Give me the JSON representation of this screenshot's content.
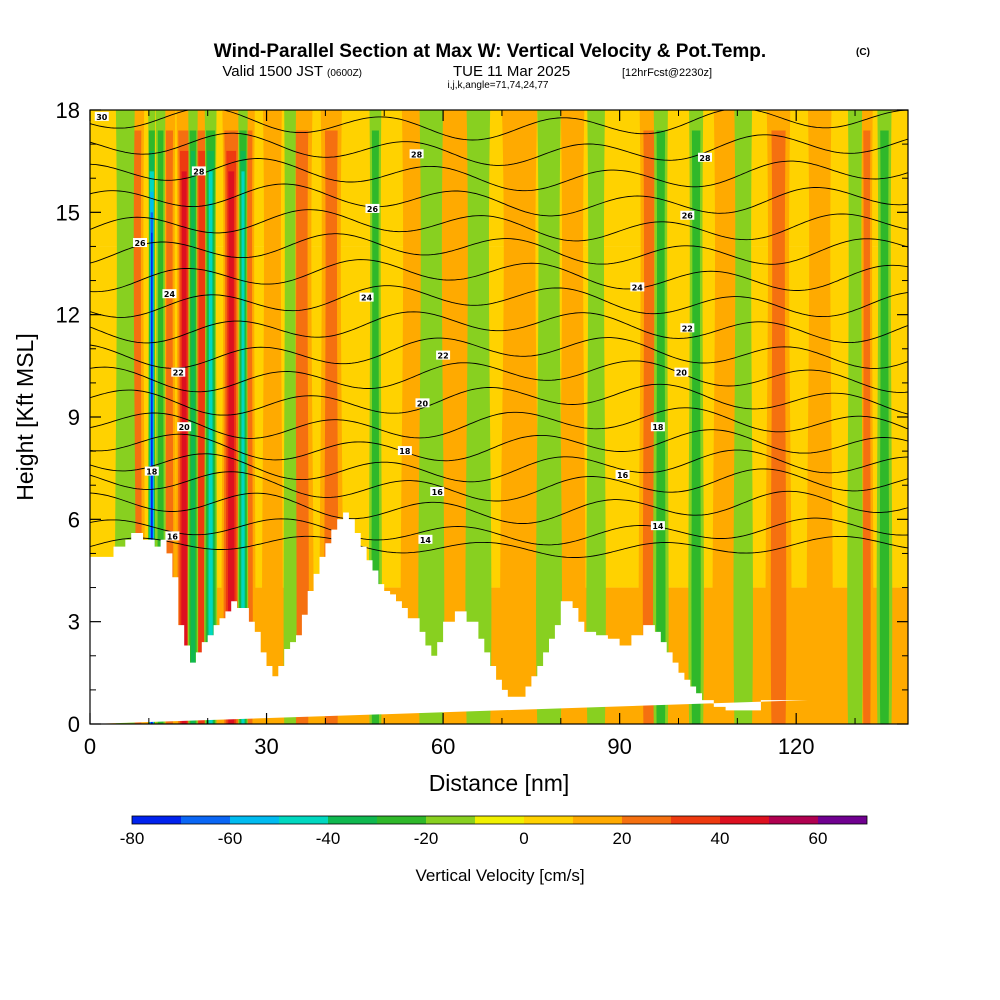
{
  "header": {
    "title": "Wind-Parallel Section at Max W: Vertical Velocity & Pot.Temp.",
    "title_mark": "(C)",
    "subtitle_valid": "Valid 1500 JST",
    "subtitle_utc": "(0600Z)",
    "subtitle_date": "TUE 11 Mar 2025",
    "subtitle_fcst": "[12hrFcst@2230z]",
    "subtitle_params": "i,j,k,angle=71,74,24,77"
  },
  "chart_data": {
    "type": "heatmap",
    "title": "Wind-Parallel Section at Max W: Vertical Velocity & Pot.Temp.",
    "xlabel": "Distance [nm]",
    "ylabel": "Height [Kft MSL]",
    "xlim": [
      0,
      139
    ],
    "ylim": [
      0,
      18
    ],
    "x_ticks": [
      0,
      30,
      60,
      90,
      120
    ],
    "x_tick_labels": [
      "0",
      "30",
      "60",
      "90",
      "120"
    ],
    "y_ticks": [
      0,
      3,
      6,
      9,
      12,
      15,
      18
    ],
    "y_tick_labels": [
      "0",
      "3",
      "6",
      "9",
      "12",
      "15",
      "18"
    ],
    "colorbar": {
      "label": "Vertical Velocity [cm/s]",
      "bounds": [
        -80,
        -70,
        -60,
        -50,
        -40,
        -30,
        -20,
        -10,
        0,
        10,
        20,
        30,
        40,
        50,
        60,
        70
      ],
      "colors": [
        "#0022ee",
        "#0a66f5",
        "#00bbf0",
        "#00d8c0",
        "#10b850",
        "#2fb82a",
        "#88d020",
        "#f0f000",
        "#ffd200",
        "#ffaa00",
        "#f57010",
        "#ee3a10",
        "#dd1020",
        "#b00050",
        "#700090"
      ],
      "tick_values": [
        -80,
        -60,
        -40,
        -20,
        0,
        20,
        40,
        60
      ],
      "tick_labels": [
        "-80",
        "-60",
        "-40",
        "-20",
        "0",
        "20",
        "40",
        "60"
      ]
    },
    "updraft_bands": [
      {
        "x": 8,
        "w": 1.2,
        "v": 20
      },
      {
        "x": 13.5,
        "w": 1.0,
        "v": 25
      },
      {
        "x": 16,
        "w": 1.3,
        "v": 42
      },
      {
        "x": 19,
        "w": 1.4,
        "v": 35
      },
      {
        "x": 24,
        "w": 1.5,
        "v": 42
      },
      {
        "x": 27,
        "w": 1.0,
        "v": 22
      },
      {
        "x": 31,
        "w": 1.6,
        "v": 18
      },
      {
        "x": 36,
        "w": 1.8,
        "v": 25
      },
      {
        "x": 41,
        "w": 1.8,
        "v": 25
      },
      {
        "x": 55,
        "w": 2.0,
        "v": 14
      },
      {
        "x": 62,
        "w": 2.5,
        "v": 12
      },
      {
        "x": 73,
        "w": 3.0,
        "v": 14
      },
      {
        "x": 82,
        "w": 2.0,
        "v": 15
      },
      {
        "x": 95,
        "w": 1.6,
        "v": 25
      },
      {
        "x": 108,
        "w": 2.0,
        "v": 18
      },
      {
        "x": 117,
        "w": 2.0,
        "v": 22
      },
      {
        "x": 124,
        "w": 2.0,
        "v": 15
      },
      {
        "x": 132,
        "w": 1.0,
        "v": 28
      }
    ],
    "downdraft_bands": [
      {
        "x": 6,
        "w": 1.6,
        "v": -18
      },
      {
        "x": 10.5,
        "w": 0.6,
        "v": -75
      },
      {
        "x": 12,
        "w": 0.8,
        "v": -25
      },
      {
        "x": 17.5,
        "w": 0.8,
        "v": -30
      },
      {
        "x": 20.5,
        "w": 1.0,
        "v": -45
      },
      {
        "x": 26,
        "w": 0.8,
        "v": -40
      },
      {
        "x": 34,
        "w": 1.0,
        "v": -18
      },
      {
        "x": 48.5,
        "w": 1.0,
        "v": -22
      },
      {
        "x": 58,
        "w": 2.0,
        "v": -12
      },
      {
        "x": 66,
        "w": 2.0,
        "v": -15
      },
      {
        "x": 78,
        "w": 2.0,
        "v": -12
      },
      {
        "x": 86,
        "w": 1.5,
        "v": -12
      },
      {
        "x": 97,
        "w": 1.2,
        "v": -28
      },
      {
        "x": 103,
        "w": 1.2,
        "v": -25
      },
      {
        "x": 111,
        "w": 1.5,
        "v": -12
      },
      {
        "x": 130,
        "w": 1.2,
        "v": -15
      },
      {
        "x": 135,
        "w": 1.2,
        "v": -22
      }
    ],
    "terrain": {
      "x": [
        0,
        4,
        4,
        6,
        6,
        7,
        7,
        9,
        9,
        11,
        11,
        12,
        12,
        13,
        13,
        14,
        14,
        15,
        15,
        16,
        16,
        17,
        17,
        18,
        18,
        19,
        19,
        20,
        20,
        21,
        21,
        22,
        22,
        23,
        23,
        24,
        24,
        25,
        25,
        27,
        27,
        28,
        28,
        29,
        29,
        30,
        30,
        31,
        31,
        32,
        32,
        33,
        33,
        34,
        34,
        35,
        35,
        36,
        36,
        37,
        37,
        38,
        38,
        39,
        39,
        40,
        40,
        41,
        41,
        42,
        42,
        43,
        43,
        44,
        44,
        45,
        45,
        46,
        46,
        47,
        47,
        48,
        48,
        49,
        49,
        50,
        50,
        51,
        51,
        52,
        52,
        53,
        53,
        54,
        54,
        56,
        56,
        57,
        57,
        58,
        58,
        59,
        59,
        60,
        60,
        62,
        62,
        64,
        64,
        66,
        66,
        67,
        67,
        68,
        68,
        69,
        69,
        70,
        70,
        71,
        71,
        72,
        72,
        74,
        74,
        75,
        75,
        76,
        76,
        77,
        77,
        78,
        78,
        79,
        79,
        80,
        80,
        82,
        82,
        83,
        83,
        84,
        84,
        86,
        86,
        88,
        88,
        90,
        90,
        92,
        92,
        94,
        94,
        96,
        96,
        97,
        97,
        98,
        98,
        99,
        99,
        100,
        100,
        101,
        101,
        102,
        102,
        103,
        103,
        104,
        104,
        105,
        105,
        106,
        106,
        108,
        108,
        110,
        110,
        114,
        114,
        118,
        118,
        122,
        122,
        126,
        126,
        129,
        129,
        133,
        133,
        139
      ],
      "y": [
        4.9,
        4.9,
        5.2,
        5.2,
        5.4,
        5.4,
        5.6,
        5.6,
        5.4,
        5.4,
        5.2,
        5.2,
        5.4,
        5.4,
        5.0,
        5.0,
        4.3,
        4.3,
        2.9,
        2.9,
        2.3,
        2.3,
        1.8,
        1.8,
        2.1,
        2.1,
        2.4,
        2.4,
        2.6,
        2.6,
        2.9,
        2.9,
        3.1,
        3.1,
        3.3,
        3.3,
        3.6,
        3.6,
        3.4,
        3.4,
        3.0,
        3.0,
        2.7,
        2.7,
        2.1,
        2.1,
        1.7,
        1.7,
        1.4,
        1.4,
        1.7,
        1.7,
        2.2,
        2.2,
        2.4,
        2.4,
        2.6,
        2.6,
        3.2,
        3.2,
        3.9,
        3.9,
        4.4,
        4.4,
        4.9,
        4.9,
        5.3,
        5.3,
        5.7,
        5.7,
        6.0,
        6.0,
        6.2,
        6.2,
        6.0,
        6.0,
        5.6,
        5.6,
        5.2,
        5.2,
        4.8,
        4.8,
        4.5,
        4.5,
        4.1,
        4.1,
        3.9,
        3.9,
        3.8,
        3.8,
        3.6,
        3.6,
        3.4,
        3.4,
        3.1,
        3.1,
        2.7,
        2.7,
        2.3,
        2.3,
        2.0,
        2.0,
        2.4,
        2.4,
        3.0,
        3.0,
        3.3,
        3.3,
        3.0,
        3.0,
        2.5,
        2.5,
        2.1,
        2.1,
        1.7,
        1.7,
        1.3,
        1.3,
        1.0,
        1.0,
        0.8,
        0.8,
        0.8,
        0.8,
        1.1,
        1.1,
        1.4,
        1.4,
        1.7,
        1.7,
        2.1,
        2.1,
        2.5,
        2.5,
        2.9,
        2.9,
        3.6,
        3.6,
        3.4,
        3.4,
        3.0,
        3.0,
        2.7,
        2.7,
        2.6,
        2.6,
        2.5,
        2.5,
        2.3,
        2.3,
        2.6,
        2.6,
        2.9,
        2.9,
        2.7,
        2.7,
        2.4,
        2.4,
        2.1,
        2.1,
        1.8,
        1.8,
        1.5,
        1.5,
        1.3,
        1.3,
        1.1,
        1.1,
        0.9,
        0.9,
        0.7,
        0.7,
        0.7,
        0.7,
        0.5,
        0.5,
        0.4,
        0.4,
        0.4,
        0.4,
        0.7,
        0.7,
        0.7,
        0.7,
        0.7
      ]
    },
    "isentropes": [
      {
        "theta": 14,
        "base": 5.2,
        "amp": 0.2
      },
      {
        "theta": 15,
        "base": 5.65,
        "amp": 0.25
      },
      {
        "theta": 16,
        "base": 6.35,
        "amp": 0.3
      },
      {
        "theta": 17,
        "base": 7.0,
        "amp": 0.3
      },
      {
        "theta": 18,
        "base": 7.55,
        "amp": 0.3
      },
      {
        "theta": 19,
        "base": 8.15,
        "amp": 0.3
      },
      {
        "theta": 20,
        "base": 8.8,
        "amp": 0.3
      },
      {
        "theta": 21,
        "base": 9.5,
        "amp": 0.3
      },
      {
        "theta": 22,
        "base": 10.2,
        "amp": 0.3
      },
      {
        "theta": 23,
        "base": 10.9,
        "amp": 0.3
      },
      {
        "theta": 24,
        "base": 11.65,
        "amp": 0.3
      },
      {
        "theta": 25,
        "base": 12.4,
        "amp": 0.3
      },
      {
        "theta": 26,
        "base": 13.15,
        "amp": 0.3
      },
      {
        "theta": 27,
        "base": 13.9,
        "amp": 0.3
      },
      {
        "theta": 28,
        "base": 14.6,
        "amp": 0.3
      },
      {
        "theta": 29,
        "base": 15.35,
        "amp": 0.3
      },
      {
        "theta": 30,
        "base": 16.1,
        "amp": 0.3
      },
      {
        "theta": 31,
        "base": 16.85,
        "amp": 0.3
      },
      {
        "theta": 32,
        "base": 17.6,
        "amp": 0.3
      }
    ],
    "isentrope_labels": [
      {
        "text": "30",
        "x": 2,
        "y": 17.8
      },
      {
        "text": "28",
        "x": 55.5,
        "y": 16.7
      },
      {
        "text": "28",
        "x": 104.5,
        "y": 16.6
      },
      {
        "text": "28",
        "x": 18.5,
        "y": 16.2
      },
      {
        "text": "26",
        "x": 48,
        "y": 15.1
      },
      {
        "text": "26",
        "x": 101.5,
        "y": 14.9
      },
      {
        "text": "26",
        "x": 8.5,
        "y": 14.1
      },
      {
        "text": "24",
        "x": 93,
        "y": 12.8
      },
      {
        "text": "24",
        "x": 13.5,
        "y": 12.6
      },
      {
        "text": "24",
        "x": 47,
        "y": 12.5
      },
      {
        "text": "22",
        "x": 101.5,
        "y": 11.6
      },
      {
        "text": "22",
        "x": 60,
        "y": 10.8
      },
      {
        "text": "22",
        "x": 15,
        "y": 10.3
      },
      {
        "text": "20",
        "x": 100.5,
        "y": 10.3
      },
      {
        "text": "20",
        "x": 56.5,
        "y": 9.4
      },
      {
        "text": "20",
        "x": 16,
        "y": 8.7
      },
      {
        "text": "18",
        "x": 96.5,
        "y": 8.7
      },
      {
        "text": "18",
        "x": 53.5,
        "y": 8.0
      },
      {
        "text": "18",
        "x": 10.5,
        "y": 7.4
      },
      {
        "text": "16",
        "x": 90.5,
        "y": 7.3
      },
      {
        "text": "16",
        "x": 59,
        "y": 6.8
      },
      {
        "text": "14",
        "x": 96.5,
        "y": 5.8
      },
      {
        "text": "14",
        "x": 57,
        "y": 5.4
      },
      {
        "text": "16",
        "x": 14,
        "y": 5.5
      }
    ]
  }
}
